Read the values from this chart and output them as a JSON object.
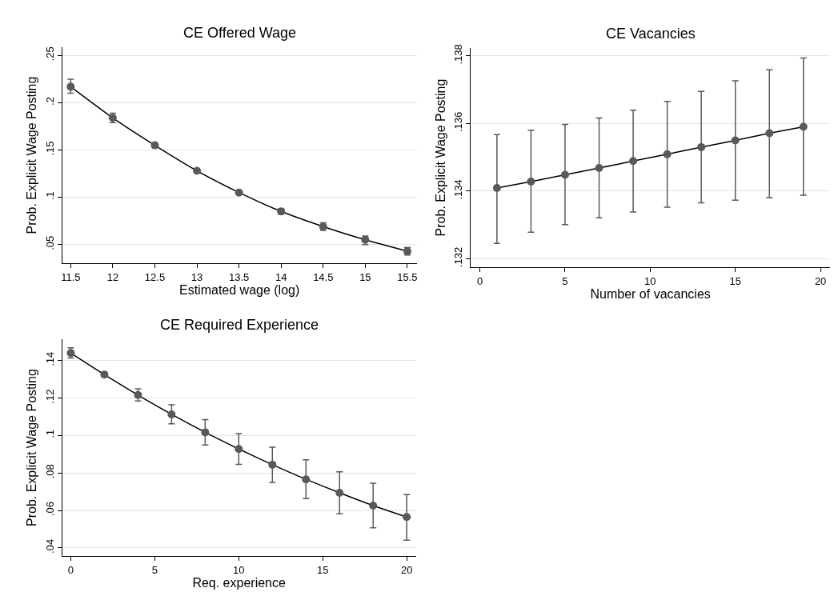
{
  "chart_data": [
    {
      "type": "line",
      "title": "CE Offered Wage",
      "xlabel": "Estimated wage (log)",
      "ylabel": "Prob. Explicit Wage Posting",
      "x": [
        11.5,
        12,
        12.5,
        13,
        13.5,
        14,
        14.5,
        15,
        15.5
      ],
      "xlim": [
        11.4,
        15.61
      ],
      "xticks": [
        11.5,
        12,
        12.5,
        13,
        13.5,
        14,
        14.5,
        15,
        15.5
      ],
      "ylim": [
        0.03,
        0.259
      ],
      "yticks": [
        {
          "value": 0.05,
          "label": ".05"
        },
        {
          "value": 0.1,
          "label": ".1"
        },
        {
          "value": 0.15,
          "label": ".15"
        },
        {
          "value": 0.2,
          "label": ".2"
        },
        {
          "value": 0.25,
          "label": ".25"
        }
      ],
      "grid": "y",
      "series": [
        {
          "type": "line",
          "color": "#000000",
          "values": [
            0.217,
            0.184,
            0.155,
            0.128,
            0.105,
            0.085,
            0.069,
            0.055,
            0.043
          ]
        },
        {
          "type": "scatter",
          "color": "#595959",
          "marker": "circle",
          "values": [
            0.217,
            0.184,
            0.155,
            0.128,
            0.105,
            0.085,
            0.069,
            0.055,
            0.043
          ],
          "errors": [
            [
              0.21,
              0.225
            ],
            [
              0.179,
              0.189
            ],
            [
              0.153,
              0.157
            ],
            [
              0.127,
              0.13
            ],
            [
              0.104,
              0.107
            ],
            [
              0.082,
              0.088
            ],
            [
              0.065,
              0.073
            ],
            [
              0.05,
              0.059
            ],
            [
              0.039,
              0.047
            ]
          ]
        }
      ]
    },
    {
      "type": "line",
      "title": "CE Vacancies",
      "xlabel": "Number of vacancies",
      "ylabel": "Prob. Explicit Wage Posting",
      "x": [
        1,
        3,
        5,
        7,
        9,
        11,
        13,
        15,
        17,
        19
      ],
      "xlim": [
        -0.53,
        20.56
      ],
      "xticks": [
        0,
        5,
        10,
        15,
        20
      ],
      "ylim": [
        0.13174,
        0.13824
      ],
      "yticks": [
        {
          "value": 0.132,
          "label": ".132"
        },
        {
          "value": 0.134,
          "label": ".134"
        },
        {
          "value": 0.136,
          "label": ".136"
        },
        {
          "value": 0.138,
          "label": ".138"
        }
      ],
      "grid": "y",
      "series": [
        {
          "type": "line",
          "color": "#000000",
          "values": [
            0.13409,
            0.13428,
            0.13448,
            0.13468,
            0.13489,
            0.13509,
            0.1353,
            0.1355,
            0.13571,
            0.1359
          ]
        },
        {
          "type": "scatter",
          "color": "#595959",
          "marker": "circle",
          "values": [
            0.13409,
            0.13428,
            0.13448,
            0.13468,
            0.13489,
            0.13509,
            0.1353,
            0.1355,
            0.13571,
            0.1359
          ],
          "errors": [
            [
              0.13245,
              0.13567
            ],
            [
              0.13278,
              0.1358
            ],
            [
              0.13301,
              0.13597
            ],
            [
              0.13321,
              0.13616
            ],
            [
              0.13338,
              0.13639
            ],
            [
              0.13352,
              0.13665
            ],
            [
              0.13365,
              0.13695
            ],
            [
              0.13373,
              0.13726
            ],
            [
              0.1338,
              0.13759
            ],
            [
              0.13388,
              0.13794
            ]
          ]
        }
      ]
    },
    {
      "type": "line",
      "title": "CE Required Experience",
      "xlabel": "Req. experience",
      "ylabel": "Prob. Explicit Wage Posting",
      "x": [
        0,
        2,
        4,
        6,
        8,
        10,
        12,
        14,
        16,
        18,
        20
      ],
      "xlim": [
        -0.51,
        20.54
      ],
      "xticks": [
        0,
        5,
        10,
        15,
        20
      ],
      "ylim": [
        0.0355,
        0.1515
      ],
      "yticks": [
        {
          "value": 0.04,
          "label": ".04"
        },
        {
          "value": 0.06,
          "label": ".06"
        },
        {
          "value": 0.08,
          "label": ".08"
        },
        {
          "value": 0.1,
          "label": ".1"
        },
        {
          "value": 0.12,
          "label": ".12"
        },
        {
          "value": 0.14,
          "label": ".14"
        }
      ],
      "grid": "y",
      "series": [
        {
          "type": "line",
          "color": "#000000",
          "values": [
            0.144,
            0.1325,
            0.1216,
            0.1113,
            0.1017,
            0.0928,
            0.0844,
            0.0766,
            0.0694,
            0.0626,
            0.0565
          ]
        },
        {
          "type": "scatter",
          "color": "#595959",
          "marker": "circle",
          "values": [
            0.144,
            0.1325,
            0.1216,
            0.1113,
            0.1017,
            0.0928,
            0.0844,
            0.0766,
            0.0694,
            0.0626,
            0.0565
          ],
          "errors": [
            [
              0.1414,
              0.1468
            ],
            [
              0.1312,
              0.1338
            ],
            [
              0.1184,
              0.1249
            ],
            [
              0.1062,
              0.1164
            ],
            [
              0.0949,
              0.1085
            ],
            [
              0.0846,
              0.101
            ],
            [
              0.075,
              0.0938
            ],
            [
              0.0663,
              0.087
            ],
            [
              0.0582,
              0.0806
            ],
            [
              0.0507,
              0.0745
            ],
            [
              0.0441,
              0.0684
            ]
          ]
        }
      ]
    }
  ]
}
